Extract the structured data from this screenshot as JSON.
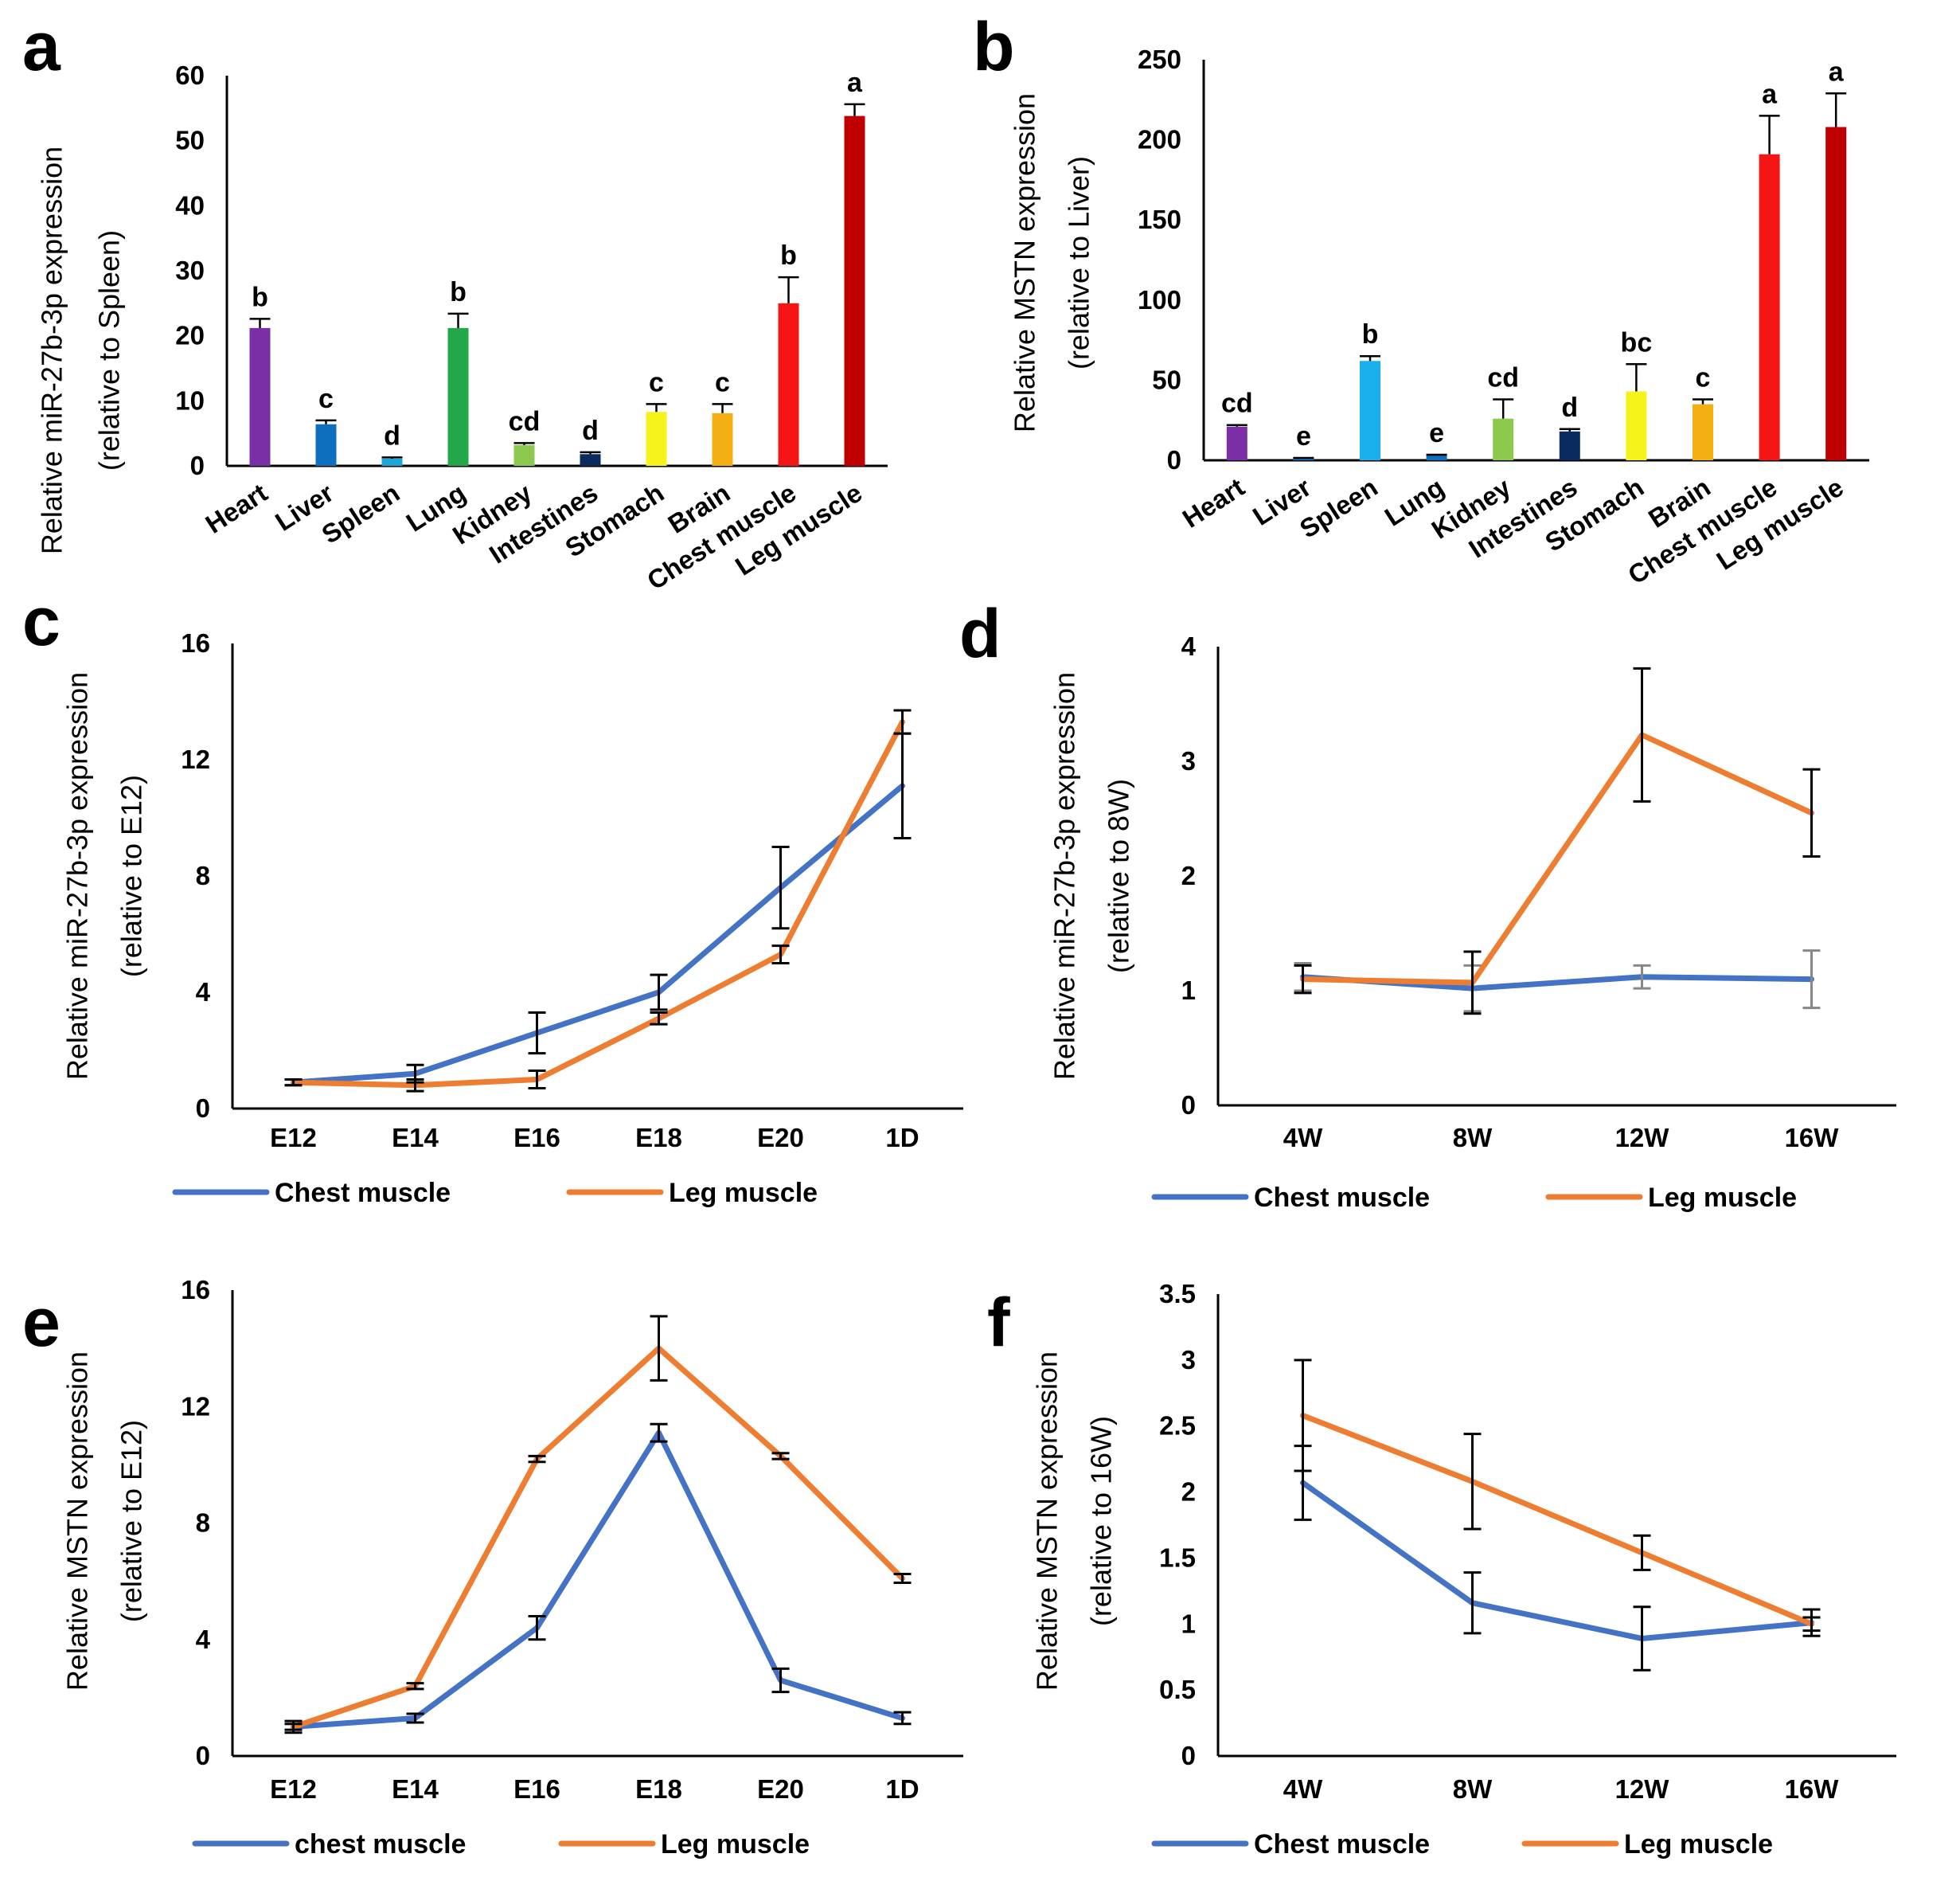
{
  "chart_data": [
    {
      "panel": "a",
      "type": "bar",
      "ylabel": [
        "Relative miR-27b-3p expression",
        "(relative to Spleen)"
      ],
      "ylim": [
        0,
        60
      ],
      "yticks": [
        "0",
        "10",
        "20",
        "30",
        "40",
        "50",
        "60"
      ],
      "categories": [
        "Heart",
        "Liver",
        "Spleen",
        "Lung",
        "Kidney",
        "Intestines",
        "Stomach",
        "Brain",
        "Chest muscle",
        "Leg muscle"
      ],
      "values": [
        21.2,
        6.4,
        1.1,
        21.2,
        3.2,
        1.8,
        8.3,
        8.1,
        25.0,
        53.8
      ],
      "errors": [
        1.4,
        0.6,
        0.2,
        2.2,
        0.3,
        0.3,
        1.2,
        1.4,
        4.0,
        1.8
      ],
      "significance": [
        "b",
        "c",
        "d",
        "b",
        "cd",
        "d",
        "c",
        "c",
        "b",
        "a"
      ],
      "colors": [
        "#7B2FA6",
        "#0E6FBF",
        "#1AA6D9",
        "#22A84A",
        "#8CC94E",
        "#0B2A5E",
        "#F5F31A",
        "#F4B012",
        "#F51515",
        "#C00000"
      ]
    },
    {
      "panel": "b",
      "type": "bar",
      "ylabel": [
        "Relative MSTN expression",
        "(relative to Liver)"
      ],
      "ylim": [
        0,
        250
      ],
      "yticks": [
        "0",
        "50",
        "100",
        "150",
        "200",
        "250"
      ],
      "categories": [
        "Heart",
        "Liver",
        "Spleen",
        "Lung",
        "Kidney",
        "Intestines",
        "Stomach",
        "Brain",
        "Chest muscle",
        "Leg muscle"
      ],
      "values": [
        21,
        1,
        62,
        3,
        26,
        18,
        43,
        35,
        191,
        208
      ],
      "errors": [
        1,
        0.5,
        3,
        0.5,
        12,
        1.5,
        17,
        3,
        24,
        21
      ],
      "significance": [
        "cd",
        "e",
        "b",
        "e",
        "cd",
        "d",
        "bc",
        "c",
        "a",
        "a"
      ],
      "colors": [
        "#7B2FA6",
        "#0E6FBF",
        "#1AB0EE",
        "#0E6FBF",
        "#8CC94E",
        "#0B2A5E",
        "#F5F31A",
        "#F4B012",
        "#F51515",
        "#C00000"
      ]
    },
    {
      "panel": "c",
      "type": "line",
      "ylabel": [
        "Relative miR-27b-3p expression",
        "(relative to E12)"
      ],
      "ylim": [
        0,
        16
      ],
      "yticks": [
        "0",
        "4",
        "8",
        "12",
        "16"
      ],
      "x": [
        "E12",
        "E14",
        "E16",
        "E18",
        "E20",
        "1D"
      ],
      "series": [
        {
          "name": "Chest muscle",
          "color": "#4472C4",
          "values": [
            0.9,
            1.2,
            2.6,
            4.0,
            7.6,
            11.1
          ],
          "errors": [
            0.1,
            0.3,
            0.7,
            0.6,
            1.4,
            1.8
          ],
          "errColor": "#000000"
        },
        {
          "name": "Leg muscle",
          "color": "#ED7D31",
          "values": [
            0.9,
            0.8,
            1.0,
            3.1,
            5.3,
            13.3
          ],
          "errors": [
            0.1,
            0.2,
            0.3,
            0.2,
            0.3,
            0.4
          ],
          "errColor": "#000000"
        }
      ]
    },
    {
      "panel": "d",
      "type": "line",
      "ylabel": [
        "Relative miR-27b-3p expression",
        "(relative to 8W)"
      ],
      "ylim": [
        0,
        4
      ],
      "yticks": [
        "0",
        "1",
        "2",
        "3",
        "4"
      ],
      "x": [
        "4W",
        "8W",
        "12W",
        "16W"
      ],
      "series": [
        {
          "name": "Chest muscle",
          "color": "#4472C4",
          "values": [
            1.12,
            1.02,
            1.12,
            1.1
          ],
          "errors": [
            0.12,
            0.2,
            0.1,
            0.25
          ],
          "errColor": "#888888"
        },
        {
          "name": "Leg muscle",
          "color": "#ED7D31",
          "values": [
            1.1,
            1.07,
            3.23,
            2.55
          ],
          "errors": [
            0.12,
            0.27,
            0.58,
            0.38
          ],
          "errColor": "#000000"
        }
      ]
    },
    {
      "panel": "e",
      "type": "line",
      "ylabel": [
        "Relative MSTN expression",
        "(relative to E12)"
      ],
      "ylim": [
        0,
        16
      ],
      "yticks": [
        "0",
        "4",
        "8",
        "12",
        "16"
      ],
      "x": [
        "E12",
        "E14",
        "E16",
        "E18",
        "E20",
        "1D"
      ],
      "series": [
        {
          "name": "chest muscle",
          "color": "#4472C4",
          "values": [
            1.0,
            1.3,
            4.4,
            11.1,
            2.6,
            1.3
          ],
          "errors": [
            0.2,
            0.15,
            0.4,
            0.3,
            0.4,
            0.2
          ],
          "errColor": "#000000"
        },
        {
          "name": "Leg muscle",
          "color": "#ED7D31",
          "values": [
            1.0,
            2.4,
            10.2,
            14.0,
            10.3,
            6.1
          ],
          "errors": [
            0.1,
            0.1,
            0.1,
            1.1,
            0.1,
            0.15
          ],
          "errColor": "#000000"
        }
      ]
    },
    {
      "panel": "f",
      "type": "line",
      "ylabel": [
        "Relative MSTN expression",
        "(relative to 16W)"
      ],
      "ylim": [
        0,
        3.5
      ],
      "yticks": [
        "0",
        "0.5",
        "1",
        "1.5",
        "2",
        "2.5",
        "3",
        "3.5"
      ],
      "x": [
        "4W",
        "8W",
        "12W",
        "16W"
      ],
      "series": [
        {
          "name": "Chest muscle",
          "color": "#4472C4",
          "values": [
            2.07,
            1.16,
            0.89,
            1.01
          ],
          "errors": [
            0.28,
            0.23,
            0.24,
            0.1
          ],
          "errColor": "#000000"
        },
        {
          "name": "Leg muscle",
          "color": "#ED7D31",
          "values": [
            2.58,
            2.08,
            1.54,
            1.0
          ],
          "errors": [
            0.42,
            0.36,
            0.13,
            0.05
          ],
          "errColor": "#000000"
        }
      ]
    }
  ]
}
